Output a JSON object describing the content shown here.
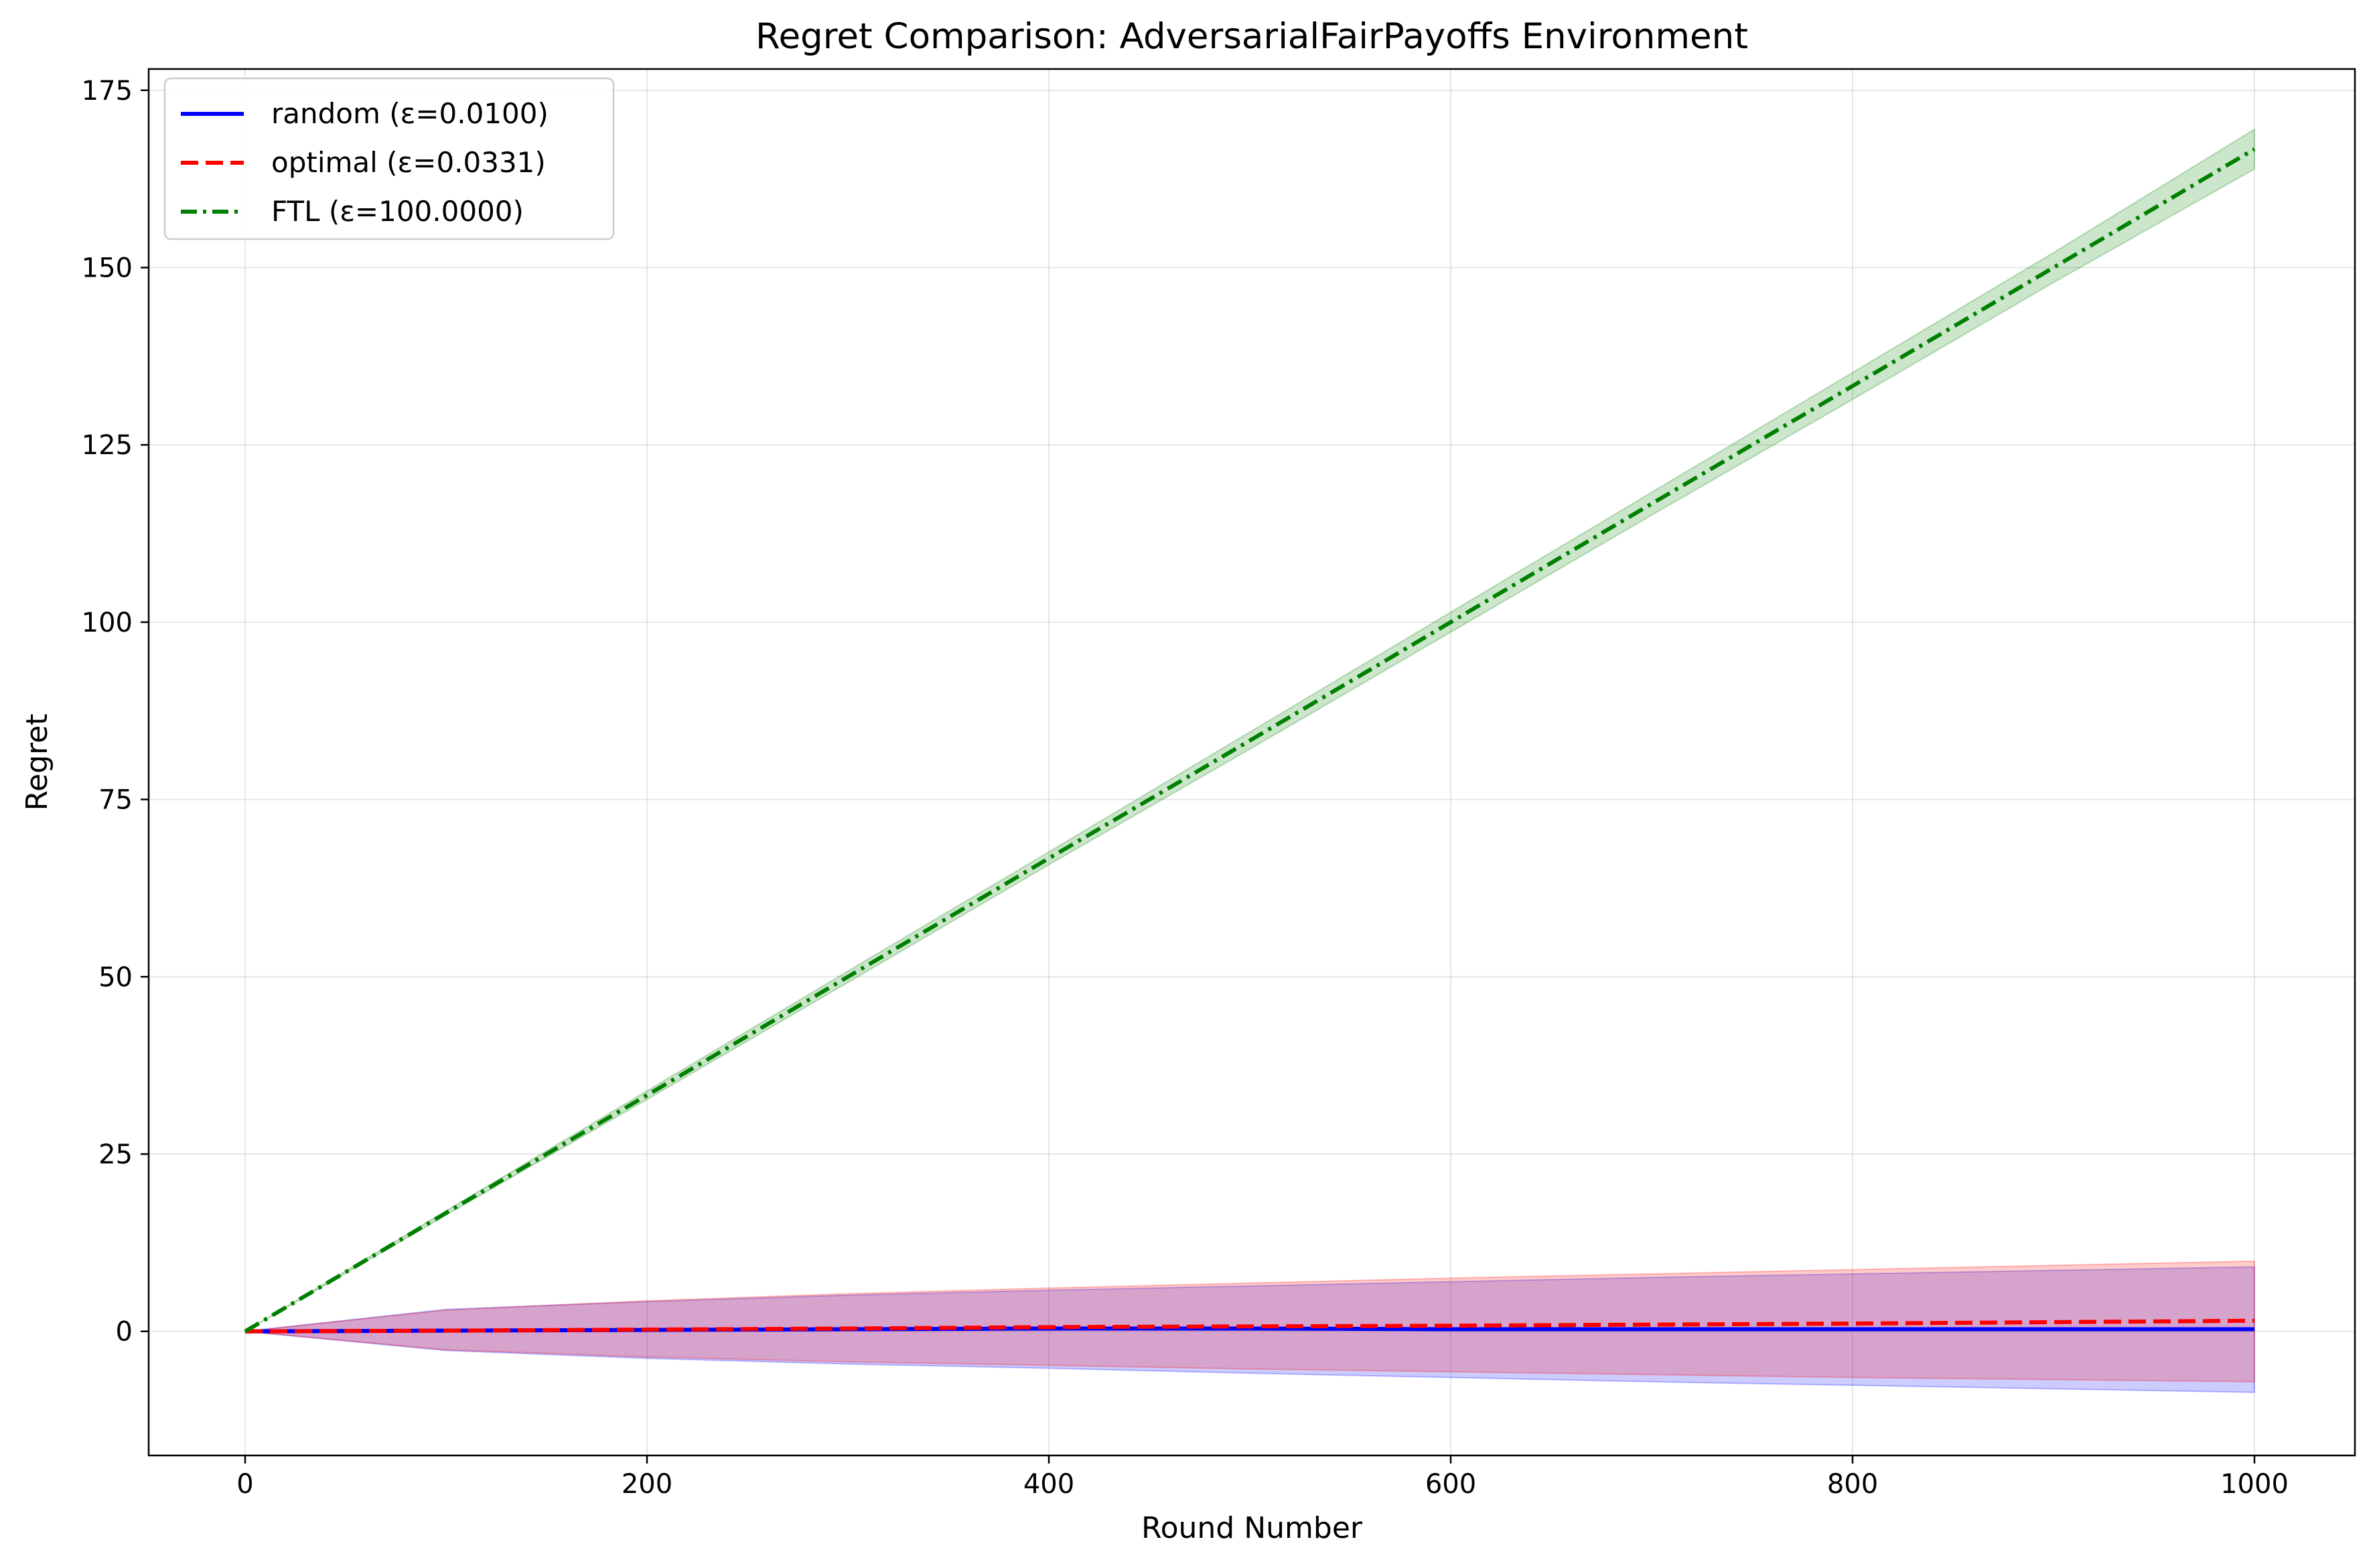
{
  "chart_data": {
    "type": "line",
    "title": "Regret Comparison: AdversarialFairPayoffs Environment",
    "xlabel": "Round Number",
    "ylabel": "Regret",
    "xlim": [
      -48,
      1050
    ],
    "ylim": [
      -17.5,
      178
    ],
    "xticks": [
      0,
      200,
      400,
      600,
      800,
      1000
    ],
    "yticks": [
      0,
      25,
      50,
      75,
      100,
      125,
      150,
      175
    ],
    "grid": true,
    "legend_position": "upper-left",
    "x": [
      0,
      100,
      200,
      300,
      400,
      500,
      600,
      700,
      800,
      900,
      1000
    ],
    "series": [
      {
        "name": "random (ε=0.0100)",
        "color": "#0000ff",
        "style": "solid",
        "values": [
          0,
          0.1,
          0.2,
          0.3,
          0.4,
          0.4,
          0.3,
          0.3,
          0.3,
          0.3,
          0.3
        ],
        "band_upper": [
          0,
          3.1,
          4.2,
          5.1,
          5.8,
          6.4,
          7.0,
          7.6,
          8.1,
          8.6,
          9.1
        ],
        "band_lower": [
          0,
          -2.7,
          -3.8,
          -4.6,
          -5.2,
          -5.9,
          -6.5,
          -7.1,
          -7.6,
          -8.1,
          -8.6
        ],
        "band_color": "#0000ff"
      },
      {
        "name": "optimal (ε=0.0331)",
        "color": "#ff0000",
        "style": "dashed",
        "values": [
          0,
          0.1,
          0.25,
          0.4,
          0.6,
          0.7,
          0.8,
          0.95,
          1.1,
          1.3,
          1.5
        ],
        "band_upper": [
          0,
          3.0,
          4.3,
          5.3,
          6.1,
          6.8,
          7.5,
          8.1,
          8.7,
          9.3,
          9.9
        ],
        "band_lower": [
          0,
          -2.6,
          -3.6,
          -4.3,
          -4.8,
          -5.3,
          -5.7,
          -6.1,
          -6.5,
          -6.8,
          -7.1
        ],
        "band_color": "#ff0000"
      },
      {
        "name": "FTL (ε=100.0000)",
        "color": "#008000",
        "style": "dashdot",
        "values": [
          0,
          16.7,
          33.3,
          50.0,
          66.7,
          83.3,
          100.0,
          116.7,
          133.3,
          150.0,
          166.7
        ],
        "band_upper": [
          0,
          17.0,
          33.9,
          50.8,
          67.6,
          84.5,
          101.4,
          118.3,
          135.2,
          152.1,
          169.5
        ],
        "band_lower": [
          0,
          16.4,
          32.7,
          49.2,
          65.8,
          82.1,
          98.6,
          115.1,
          131.4,
          147.9,
          163.9
        ],
        "band_color": "#008000"
      }
    ]
  }
}
